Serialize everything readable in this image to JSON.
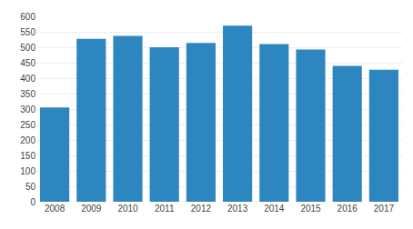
{
  "chart_data": {
    "type": "bar",
    "categories": [
      "2008",
      "2009",
      "2010",
      "2011",
      "2012",
      "2013",
      "2014",
      "2015",
      "2016",
      "2017"
    ],
    "values": [
      305,
      527,
      537,
      500,
      514,
      570,
      510,
      493,
      440,
      427
    ],
    "color": "#2e86c0",
    "ylim": [
      0,
      600
    ],
    "yticks": [
      0,
      50,
      100,
      150,
      200,
      250,
      300,
      350,
      400,
      450,
      500,
      550,
      600
    ],
    "grid": true
  }
}
